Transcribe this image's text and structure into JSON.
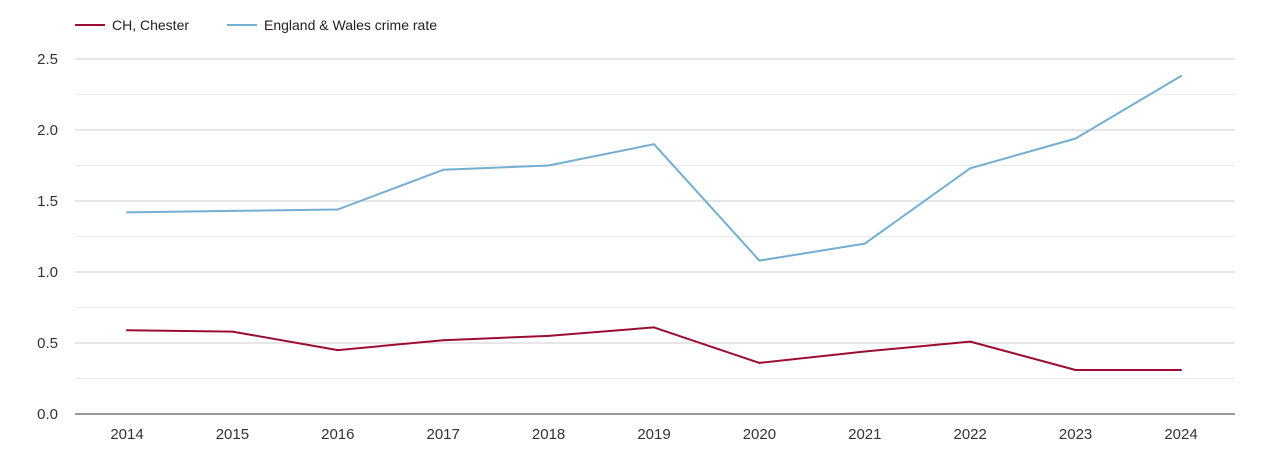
{
  "chart_data": {
    "type": "line",
    "x": [
      "2014",
      "2015",
      "2016",
      "2017",
      "2018",
      "2019",
      "2020",
      "2021",
      "2022",
      "2023",
      "2024"
    ],
    "y_ticks": [
      "0.0",
      "0.5",
      "1.0",
      "1.5",
      "2.0",
      "2.5"
    ],
    "ylim": [
      0,
      2.5
    ],
    "grid": true,
    "legend_position": "top-left",
    "series": [
      {
        "name": "CH, Chester",
        "color": "#9b0d35",
        "values": [
          0.59,
          0.58,
          0.45,
          0.52,
          0.55,
          0.61,
          0.36,
          0.44,
          0.51,
          0.31,
          0.31
        ]
      },
      {
        "name": "England & Wales crime rate",
        "color": "#73afd1",
        "values": [
          1.42,
          1.43,
          1.44,
          1.72,
          1.75,
          1.9,
          1.08,
          1.2,
          1.73,
          1.94,
          2.38
        ]
      }
    ]
  }
}
